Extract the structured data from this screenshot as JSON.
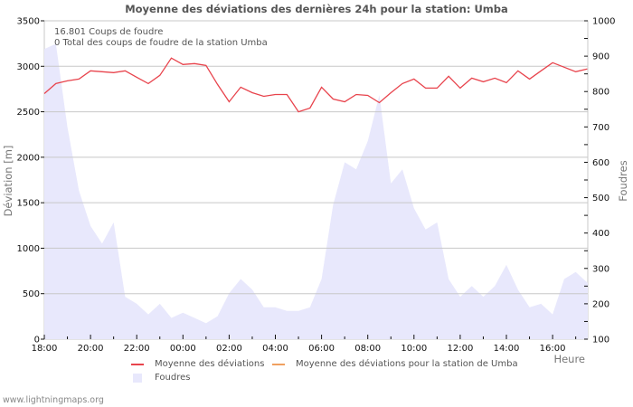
{
  "title": "Moyenne des déviations des dernières 24h pour la station: Umba",
  "info": {
    "line1": "16.801  Coups de foudre",
    "line2": "0 Total des coups de foudre de la station Umba"
  },
  "axes": {
    "left_title": "Déviation  [m]",
    "right_title": "Foudres",
    "x_title": "Heure"
  },
  "legend": {
    "item1": "Moyenne des déviations",
    "item2": "Moyenne des déviations pour la station de Umba",
    "item3": "Foudres"
  },
  "watermark": "www.lightningmaps.org",
  "colors": {
    "deviation_line": "#e8434c",
    "station_line": "#f0a060",
    "foudres_fill": "#e8e8fc",
    "grid": "#c8c8c8"
  },
  "chart_data": {
    "type": "line",
    "title": "Moyenne des déviations des dernières 24h pour la station: Umba",
    "xlabel": "Heure",
    "ylabel": "Déviation  [m]",
    "y2label": "Foudres",
    "ylim": [
      0,
      3500
    ],
    "y2lim": [
      100,
      1000
    ],
    "grid": true,
    "legend_position": "bottom",
    "x_ticks": [
      "18:00",
      "20:00",
      "22:00",
      "00:00",
      "02:00",
      "04:00",
      "06:00",
      "08:00",
      "10:00",
      "12:00",
      "14:00",
      "16:00"
    ],
    "y_ticks": [
      0,
      500,
      1000,
      1500,
      2000,
      2500,
      3000,
      3500
    ],
    "y2_ticks": [
      100,
      200,
      300,
      400,
      500,
      600,
      700,
      800,
      900,
      1000
    ],
    "x": [
      "18:00",
      "18:30",
      "19:00",
      "19:30",
      "20:00",
      "20:30",
      "21:00",
      "21:30",
      "22:00",
      "22:30",
      "23:00",
      "23:30",
      "00:00",
      "00:30",
      "01:00",
      "01:30",
      "02:00",
      "02:30",
      "03:00",
      "03:30",
      "04:00",
      "04:30",
      "05:00",
      "05:30",
      "06:00",
      "06:30",
      "07:00",
      "07:30",
      "08:00",
      "08:30",
      "09:00",
      "09:30",
      "10:00",
      "10:30",
      "11:00",
      "11:30",
      "12:00",
      "12:30",
      "13:00",
      "13:30",
      "14:00",
      "14:30",
      "15:00",
      "15:30",
      "16:00",
      "16:30",
      "17:00",
      "17:30"
    ],
    "series": [
      {
        "name": "Moyenne des déviations",
        "axis": "left",
        "type": "line",
        "values": [
          2700,
          2810,
          2840,
          2860,
          2950,
          2940,
          2930,
          2950,
          2880,
          2810,
          2900,
          3090,
          3020,
          3030,
          3010,
          2800,
          2610,
          2770,
          2710,
          2670,
          2690,
          2690,
          2500,
          2540,
          2770,
          2640,
          2610,
          2690,
          2680,
          2600,
          2710,
          2810,
          2860,
          2760,
          2760,
          2890,
          2760,
          2870,
          2830,
          2870,
          2820,
          2950,
          2860,
          2950,
          3040,
          2990,
          2940,
          2970
        ]
      },
      {
        "name": "Moyenne des déviations pour la station de Umba",
        "axis": "left",
        "type": "line",
        "values": []
      },
      {
        "name": "Foudres",
        "axis": "right",
        "type": "area",
        "values": [
          920,
          935,
          700,
          520,
          420,
          370,
          430,
          220,
          200,
          170,
          200,
          160,
          175,
          160,
          145,
          165,
          230,
          270,
          240,
          190,
          190,
          180,
          180,
          190,
          270,
          480,
          600,
          580,
          660,
          790,
          540,
          580,
          470,
          410,
          430,
          270,
          220,
          250,
          220,
          250,
          310,
          240,
          190,
          200,
          170,
          270,
          290,
          260
        ]
      }
    ]
  }
}
